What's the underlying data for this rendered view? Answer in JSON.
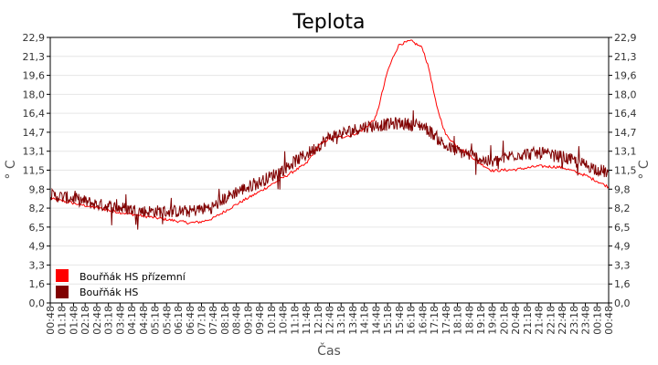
{
  "chart_data": {
    "type": "line",
    "title": "Teplota",
    "xlabel": "Čas",
    "ylabel": "° C",
    "ylim": [
      0,
      22.9
    ],
    "yticks": [
      "0,0",
      "1,6",
      "3,3",
      "4,9",
      "6,5",
      "8,2",
      "9,8",
      "11,5",
      "13,1",
      "14,7",
      "16,4",
      "18,0",
      "19,6",
      "21,3",
      "22,9"
    ],
    "xticks": [
      "00:48",
      "01:18",
      "01:48",
      "02:18",
      "02:48",
      "03:18",
      "03:48",
      "04:18",
      "04:48",
      "05:18",
      "05:48",
      "06:18",
      "06:48",
      "07:18",
      "07:48",
      "08:18",
      "08:48",
      "09:18",
      "09:48",
      "10:18",
      "10:48",
      "11:18",
      "11:48",
      "12:18",
      "12:48",
      "13:18",
      "13:48",
      "14:18",
      "14:48",
      "15:18",
      "15:48",
      "16:18",
      "16:48",
      "17:18",
      "17:48",
      "18:18",
      "18:48",
      "19:18",
      "19:48",
      "20:18",
      "20:48",
      "21:18",
      "21:48",
      "22:18",
      "22:48",
      "23:18",
      "23:48",
      "00:18",
      "00:48"
    ],
    "grid": true,
    "legend": "bottom-left",
    "series": [
      {
        "name": "Bouřňák HS přízemní",
        "color": "#ff0000",
        "hours": [
          0,
          1,
          2,
          3,
          4,
          5,
          6,
          6.5,
          7,
          8,
          9,
          10,
          11,
          11.5,
          12,
          12.5,
          13,
          13.5,
          14,
          14.5,
          14.8,
          15,
          15.5,
          16,
          16.3,
          16.6,
          17,
          17.5,
          18,
          18.5,
          19,
          20,
          21,
          22,
          23,
          24
        ],
        "values": [
          9.0,
          8.6,
          8.2,
          7.8,
          7.5,
          7.2,
          6.9,
          7.0,
          7.3,
          8.5,
          9.6,
          10.8,
          12.0,
          13.5,
          14.2,
          14.3,
          14.5,
          15.0,
          16.0,
          20.0,
          21.5,
          22.3,
          22.6,
          22.0,
          20.0,
          17.0,
          14.5,
          13.5,
          12.8,
          12.0,
          11.4,
          11.5,
          11.8,
          11.7,
          11.0,
          10.0
        ]
      },
      {
        "name": "Bouřňák HS",
        "color": "#800000",
        "hours": [
          0,
          1,
          2,
          3,
          4,
          5,
          6,
          7,
          7.5,
          8,
          9,
          10,
          10.5,
          11,
          11.5,
          12,
          12.5,
          13,
          13.5,
          14,
          14.5,
          15,
          15.5,
          16,
          16.5,
          17,
          17.5,
          18,
          18.5,
          19,
          19.5,
          20,
          21,
          22,
          23,
          24
        ],
        "values": [
          9.3,
          9.0,
          8.5,
          8.2,
          7.9,
          7.9,
          7.9,
          8.3,
          9.0,
          9.6,
          10.4,
          11.5,
          12.2,
          12.8,
          13.5,
          14.3,
          14.6,
          14.9,
          15.2,
          15.3,
          15.4,
          15.5,
          15.4,
          15.3,
          14.5,
          13.5,
          13.1,
          12.8,
          12.4,
          12.1,
          12.5,
          12.8,
          12.9,
          12.6,
          11.9,
          11.2
        ]
      }
    ]
  }
}
